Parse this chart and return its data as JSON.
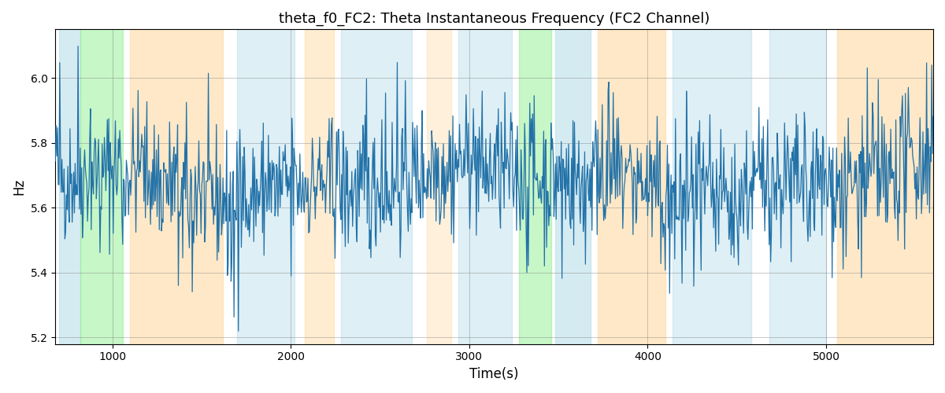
{
  "title": "theta_f0_FC2: Theta Instantaneous Frequency (FC2 Channel)",
  "xlabel": "Time(s)",
  "ylabel": "Hz",
  "xlim": [
    680,
    5600
  ],
  "ylim": [
    5.18,
    6.15
  ],
  "yticks": [
    5.2,
    5.4,
    5.6,
    5.8,
    6.0
  ],
  "line_color": "#2272a8",
  "line_width": 0.9,
  "bg_color": "white",
  "bands": [
    {
      "xmin": 700,
      "xmax": 820,
      "color": "#add8e6",
      "alpha": 0.5
    },
    {
      "xmin": 820,
      "xmax": 1060,
      "color": "#90ee90",
      "alpha": 0.5
    },
    {
      "xmin": 1100,
      "xmax": 1620,
      "color": "#ffd699",
      "alpha": 0.55
    },
    {
      "xmin": 1700,
      "xmax": 2020,
      "color": "#add8e6",
      "alpha": 0.4
    },
    {
      "xmin": 2080,
      "xmax": 2240,
      "color": "#ffd699",
      "alpha": 0.45
    },
    {
      "xmin": 2280,
      "xmax": 2680,
      "color": "#add8e6",
      "alpha": 0.4
    },
    {
      "xmin": 2760,
      "xmax": 2900,
      "color": "#ffd699",
      "alpha": 0.35
    },
    {
      "xmin": 2940,
      "xmax": 3240,
      "color": "#add8e6",
      "alpha": 0.4
    },
    {
      "xmin": 3280,
      "xmax": 3460,
      "color": "#90ee90",
      "alpha": 0.5
    },
    {
      "xmin": 3480,
      "xmax": 3680,
      "color": "#add8e6",
      "alpha": 0.5
    },
    {
      "xmin": 3720,
      "xmax": 4100,
      "color": "#ffd699",
      "alpha": 0.55
    },
    {
      "xmin": 4140,
      "xmax": 4580,
      "color": "#add8e6",
      "alpha": 0.4
    },
    {
      "xmin": 4680,
      "xmax": 5000,
      "color": "#add8e6",
      "alpha": 0.4
    },
    {
      "xmin": 5060,
      "xmax": 5600,
      "color": "#ffd699",
      "alpha": 0.55
    }
  ],
  "seed": 42,
  "n_points": 1200,
  "t_start": 680,
  "t_end": 5600,
  "mean_freq": 5.68,
  "noise_std": 0.1,
  "spike_prob": 0.08,
  "spike_scale": 0.3
}
